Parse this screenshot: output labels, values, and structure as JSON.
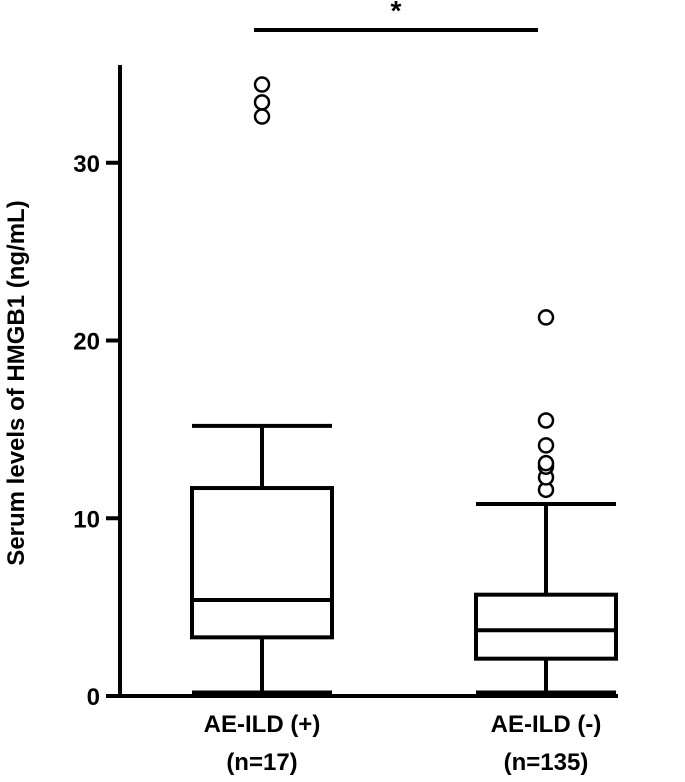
{
  "chart_data": {
    "type": "box",
    "ylabel": "Serum levels of HMGB1 (ng/mL)",
    "xlabel": "",
    "ylim": [
      0,
      35.5
    ],
    "yticks": [
      0,
      10,
      20,
      30
    ],
    "grid": false,
    "groups": [
      {
        "label_line1": "AE-ILD (+)",
        "label_line2": "(n=17)",
        "whisker_low": 0.2,
        "q1": 3.3,
        "median": 5.4,
        "q3": 11.7,
        "whisker_high": 15.2,
        "outliers": [
          32.6,
          33.4,
          34.4
        ]
      },
      {
        "label_line1": "AE-ILD (-)",
        "label_line2": "(n=135)",
        "whisker_low": 0.2,
        "q1": 2.1,
        "median": 3.7,
        "q3": 5.7,
        "whisker_high": 10.8,
        "outliers": [
          11.6,
          12.3,
          12.9,
          13.1,
          14.1,
          15.5,
          21.3
        ]
      }
    ],
    "significance": {
      "label": "*",
      "between": [
        0,
        1
      ]
    }
  }
}
